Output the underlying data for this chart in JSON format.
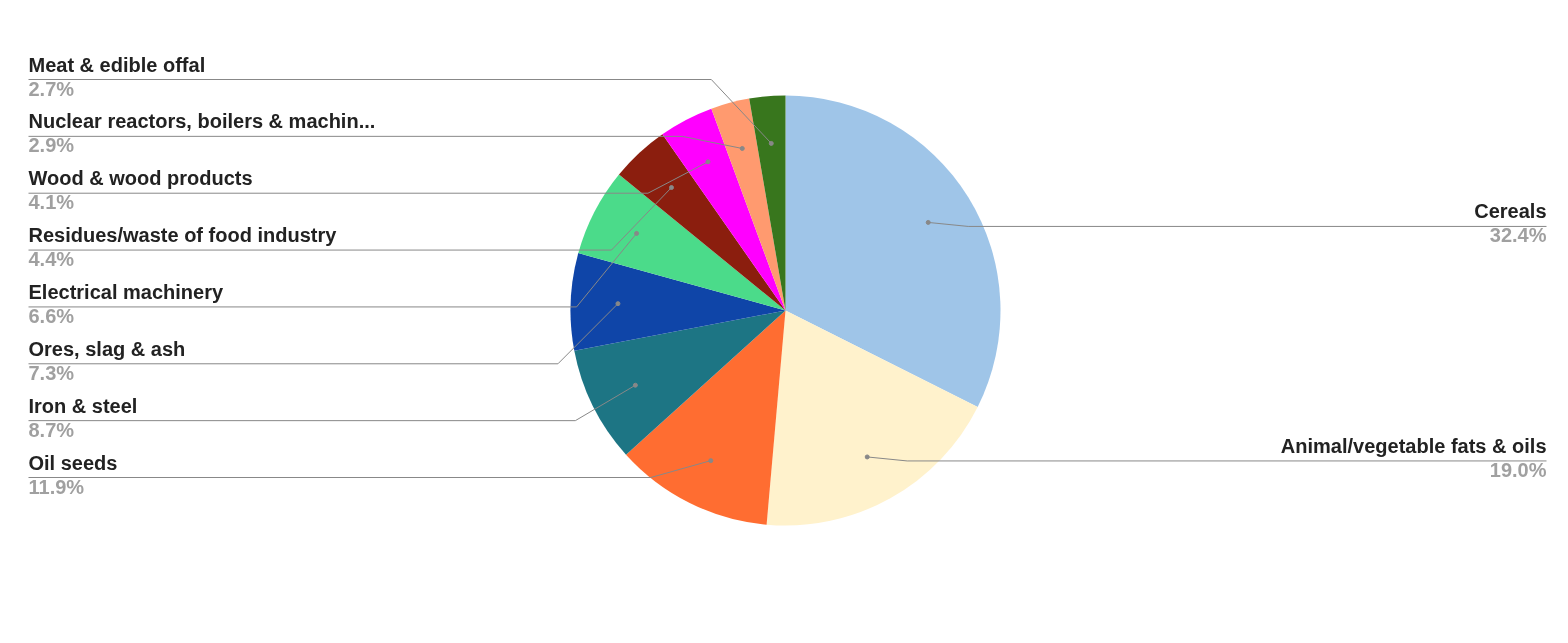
{
  "chart_data": {
    "type": "pie",
    "categories": [
      "Cereals",
      "Animal/vegetable fats & oils",
      "Oil seeds",
      "Iron & steel",
      "Ores, slag & ash",
      "Electrical machinery",
      "Residues/waste of food industry",
      "Wood & wood products",
      "Nuclear reactors, boilers & machin...",
      "Meat & edible offal"
    ],
    "values": [
      32.4,
      19.0,
      11.9,
      8.7,
      7.3,
      6.6,
      4.4,
      4.1,
      2.9,
      2.7
    ],
    "value_labels": [
      "32.4%",
      "19.0%",
      "11.9%",
      "8.7%",
      "7.3%",
      "6.6%",
      "4.4%",
      "4.1%",
      "2.9%",
      "2.7%"
    ],
    "colors": [
      "#9fc5e8",
      "#fff2cc",
      "#ff6d31",
      "#1d7584",
      "#0f45a8",
      "#4bdb8a",
      "#8b1e0e",
      "#ff00ff",
      "#ff9a6f",
      "#38761d"
    ]
  }
}
